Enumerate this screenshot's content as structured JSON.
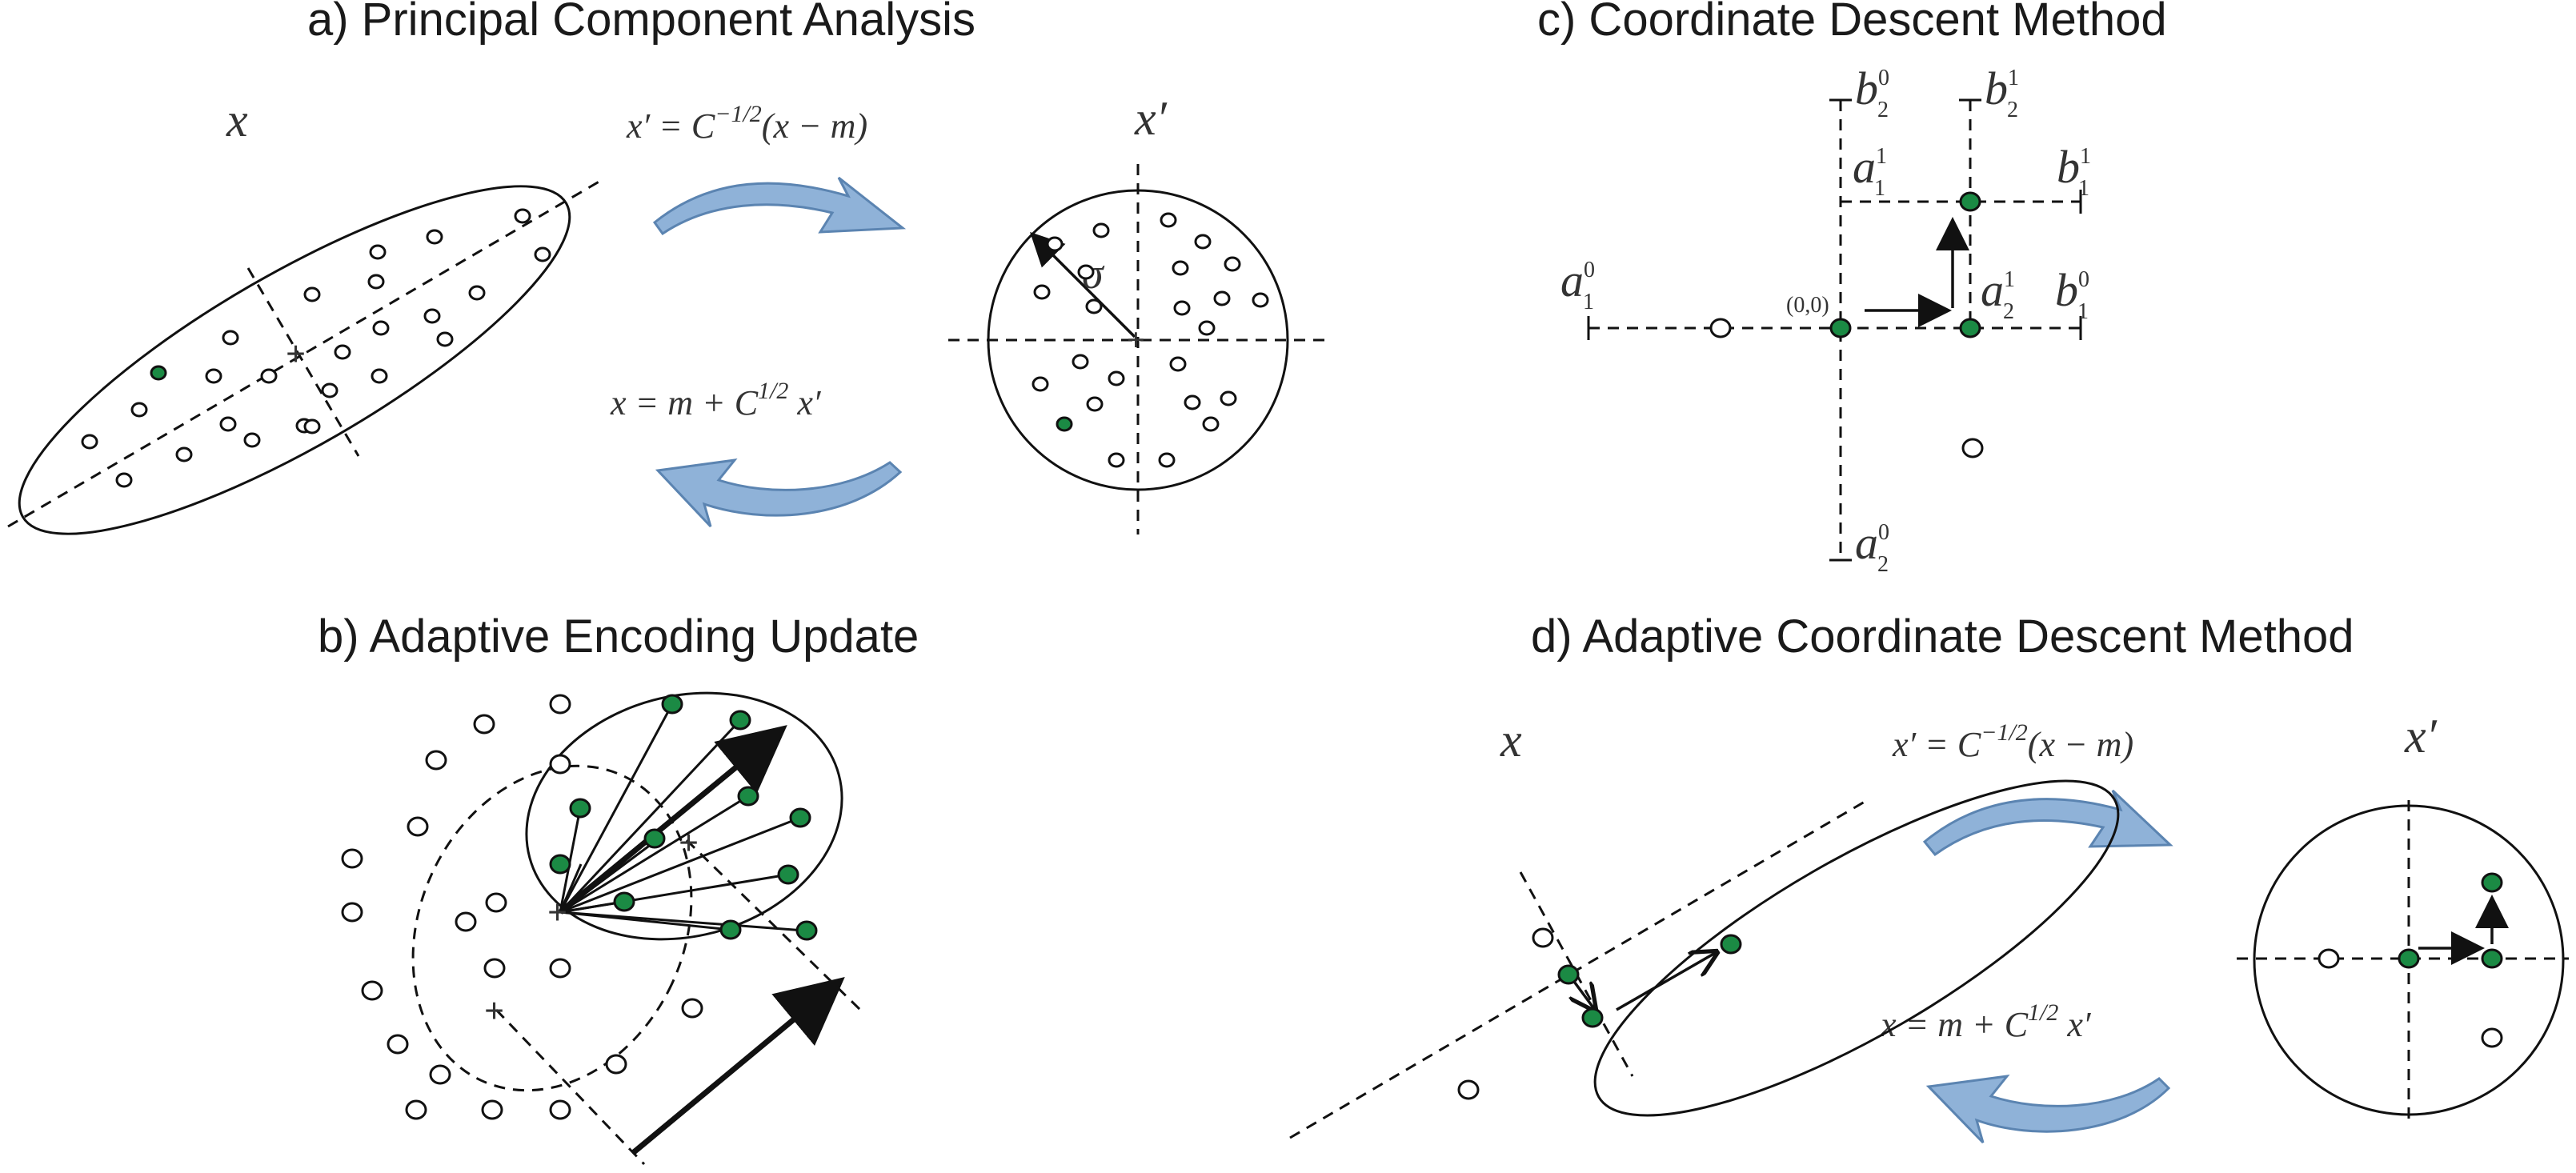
{
  "panels": {
    "a": {
      "title": "a) Principal Component Analysis",
      "x_label": "x",
      "xprime_label": "x′",
      "sigma": "σ",
      "forward_formula": {
        "lhs": "x′ = C",
        "exp": "−1/2",
        "rhs": "(x − m)"
      },
      "backward_formula": {
        "lhs": "x  = m + C",
        "exp": "1/2",
        "rhs": " x′"
      }
    },
    "b": {
      "title": "b) Adaptive Encoding Update"
    },
    "c": {
      "title": "c) Coordinate Descent Method",
      "origin_label": "(0,0)",
      "labels": {
        "b20": {
          "base": "b",
          "sub": "2",
          "sup": "0"
        },
        "b21": {
          "base": "b",
          "sub": "2",
          "sup": "1"
        },
        "a11": {
          "base": "a",
          "sub": "1",
          "sup": "1"
        },
        "b11": {
          "base": "b",
          "sub": "1",
          "sup": "1"
        },
        "a10": {
          "base": "a",
          "sub": "1",
          "sup": "0"
        },
        "a21": {
          "base": "a",
          "sub": "2",
          "sup": "1"
        },
        "b10": {
          "base": "b",
          "sub": "1",
          "sup": "0"
        },
        "a20": {
          "base": "a",
          "sub": "2",
          "sup": "0"
        }
      }
    },
    "d": {
      "title": "d) Adaptive Coordinate Descent Method",
      "x_label": "x",
      "xprime_label": "x′",
      "forward_formula": {
        "lhs": "x′ = C",
        "exp": "−1/2",
        "rhs": "(x − m)"
      },
      "backward_formula": {
        "lhs": "x  = m + C",
        "exp": "1/2",
        "rhs": " x′"
      }
    }
  },
  "colors": {
    "green_point": "#1b8a44",
    "curved_arrow": "#8fb2d8"
  }
}
